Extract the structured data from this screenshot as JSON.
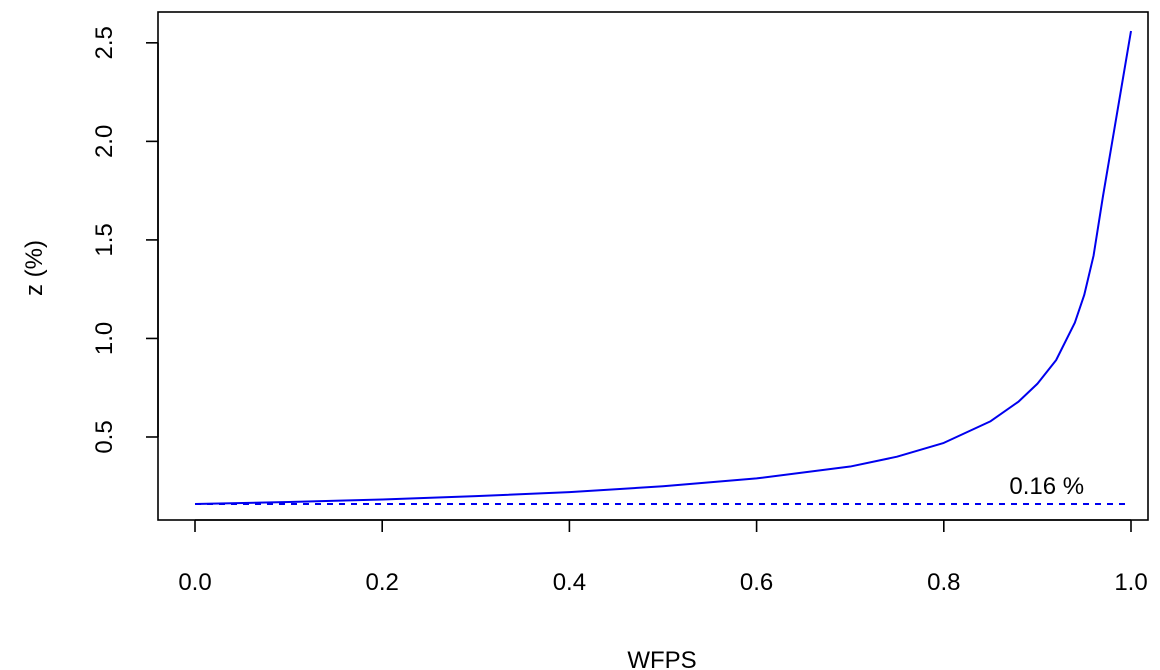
{
  "chart_data": {
    "type": "line",
    "title": "",
    "xlabel": "WFPS",
    "ylabel": "z (%)",
    "xlim": [
      0.0,
      1.0
    ],
    "ylim": [
      0.16,
      2.56
    ],
    "xticks": [
      0.0,
      0.2,
      0.4,
      0.6,
      0.8,
      1.0
    ],
    "xtick_labels": [
      "0.0",
      "0.2",
      "0.4",
      "0.6",
      "0.8",
      "1.0"
    ],
    "yticks": [
      0.5,
      1.0,
      1.5,
      2.0,
      2.5
    ],
    "ytick_labels": [
      "0.5",
      "1.0",
      "1.5",
      "2.0",
      "2.5"
    ],
    "grid": false,
    "legend": "none",
    "series": [
      {
        "style": "solid",
        "color": "#0000ee",
        "x": [
          0.0,
          0.1,
          0.2,
          0.3,
          0.4,
          0.5,
          0.6,
          0.7,
          0.75,
          0.8,
          0.85,
          0.88,
          0.9,
          0.92,
          0.94,
          0.95,
          0.96,
          0.97,
          0.98,
          0.99,
          1.0
        ],
        "y": [
          0.16,
          0.17,
          0.183,
          0.2,
          0.22,
          0.25,
          0.29,
          0.35,
          0.4,
          0.47,
          0.58,
          0.68,
          0.77,
          0.89,
          1.08,
          1.22,
          1.42,
          1.72,
          2.0,
          2.28,
          2.56
        ]
      },
      {
        "style": "dashed",
        "color": "#0000ee",
        "x": [
          0.0,
          1.0
        ],
        "y": [
          0.16,
          0.16
        ]
      }
    ],
    "annotations": [
      {
        "text": "0.16 %",
        "x": 0.91,
        "y": 0.16
      }
    ]
  }
}
